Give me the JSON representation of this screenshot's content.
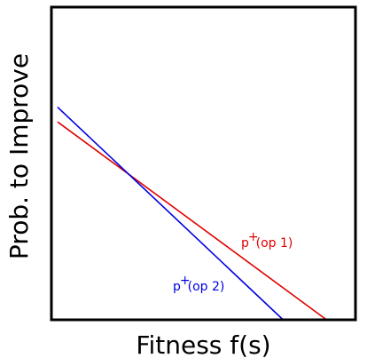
{
  "chart_data": {
    "type": "line",
    "xlabel": "Fitness f(s)",
    "ylabel": "Prob. to Improve",
    "xlim": [
      0,
      1
    ],
    "ylim": [
      0,
      1
    ],
    "grid": false,
    "series": [
      {
        "label_base": "p",
        "label_sup": "+",
        "label_rest": "(op 1)",
        "color": "#e00000",
        "x": [
          0.02,
          0.905
        ],
        "y": [
          0.633,
          0.0
        ]
      },
      {
        "label_base": "p",
        "label_sup": "+",
        "label_rest": "(op 2)",
        "color": "#0000e0",
        "x": [
          0.02,
          0.762
        ],
        "y": [
          0.68,
          0.0
        ]
      }
    ]
  }
}
